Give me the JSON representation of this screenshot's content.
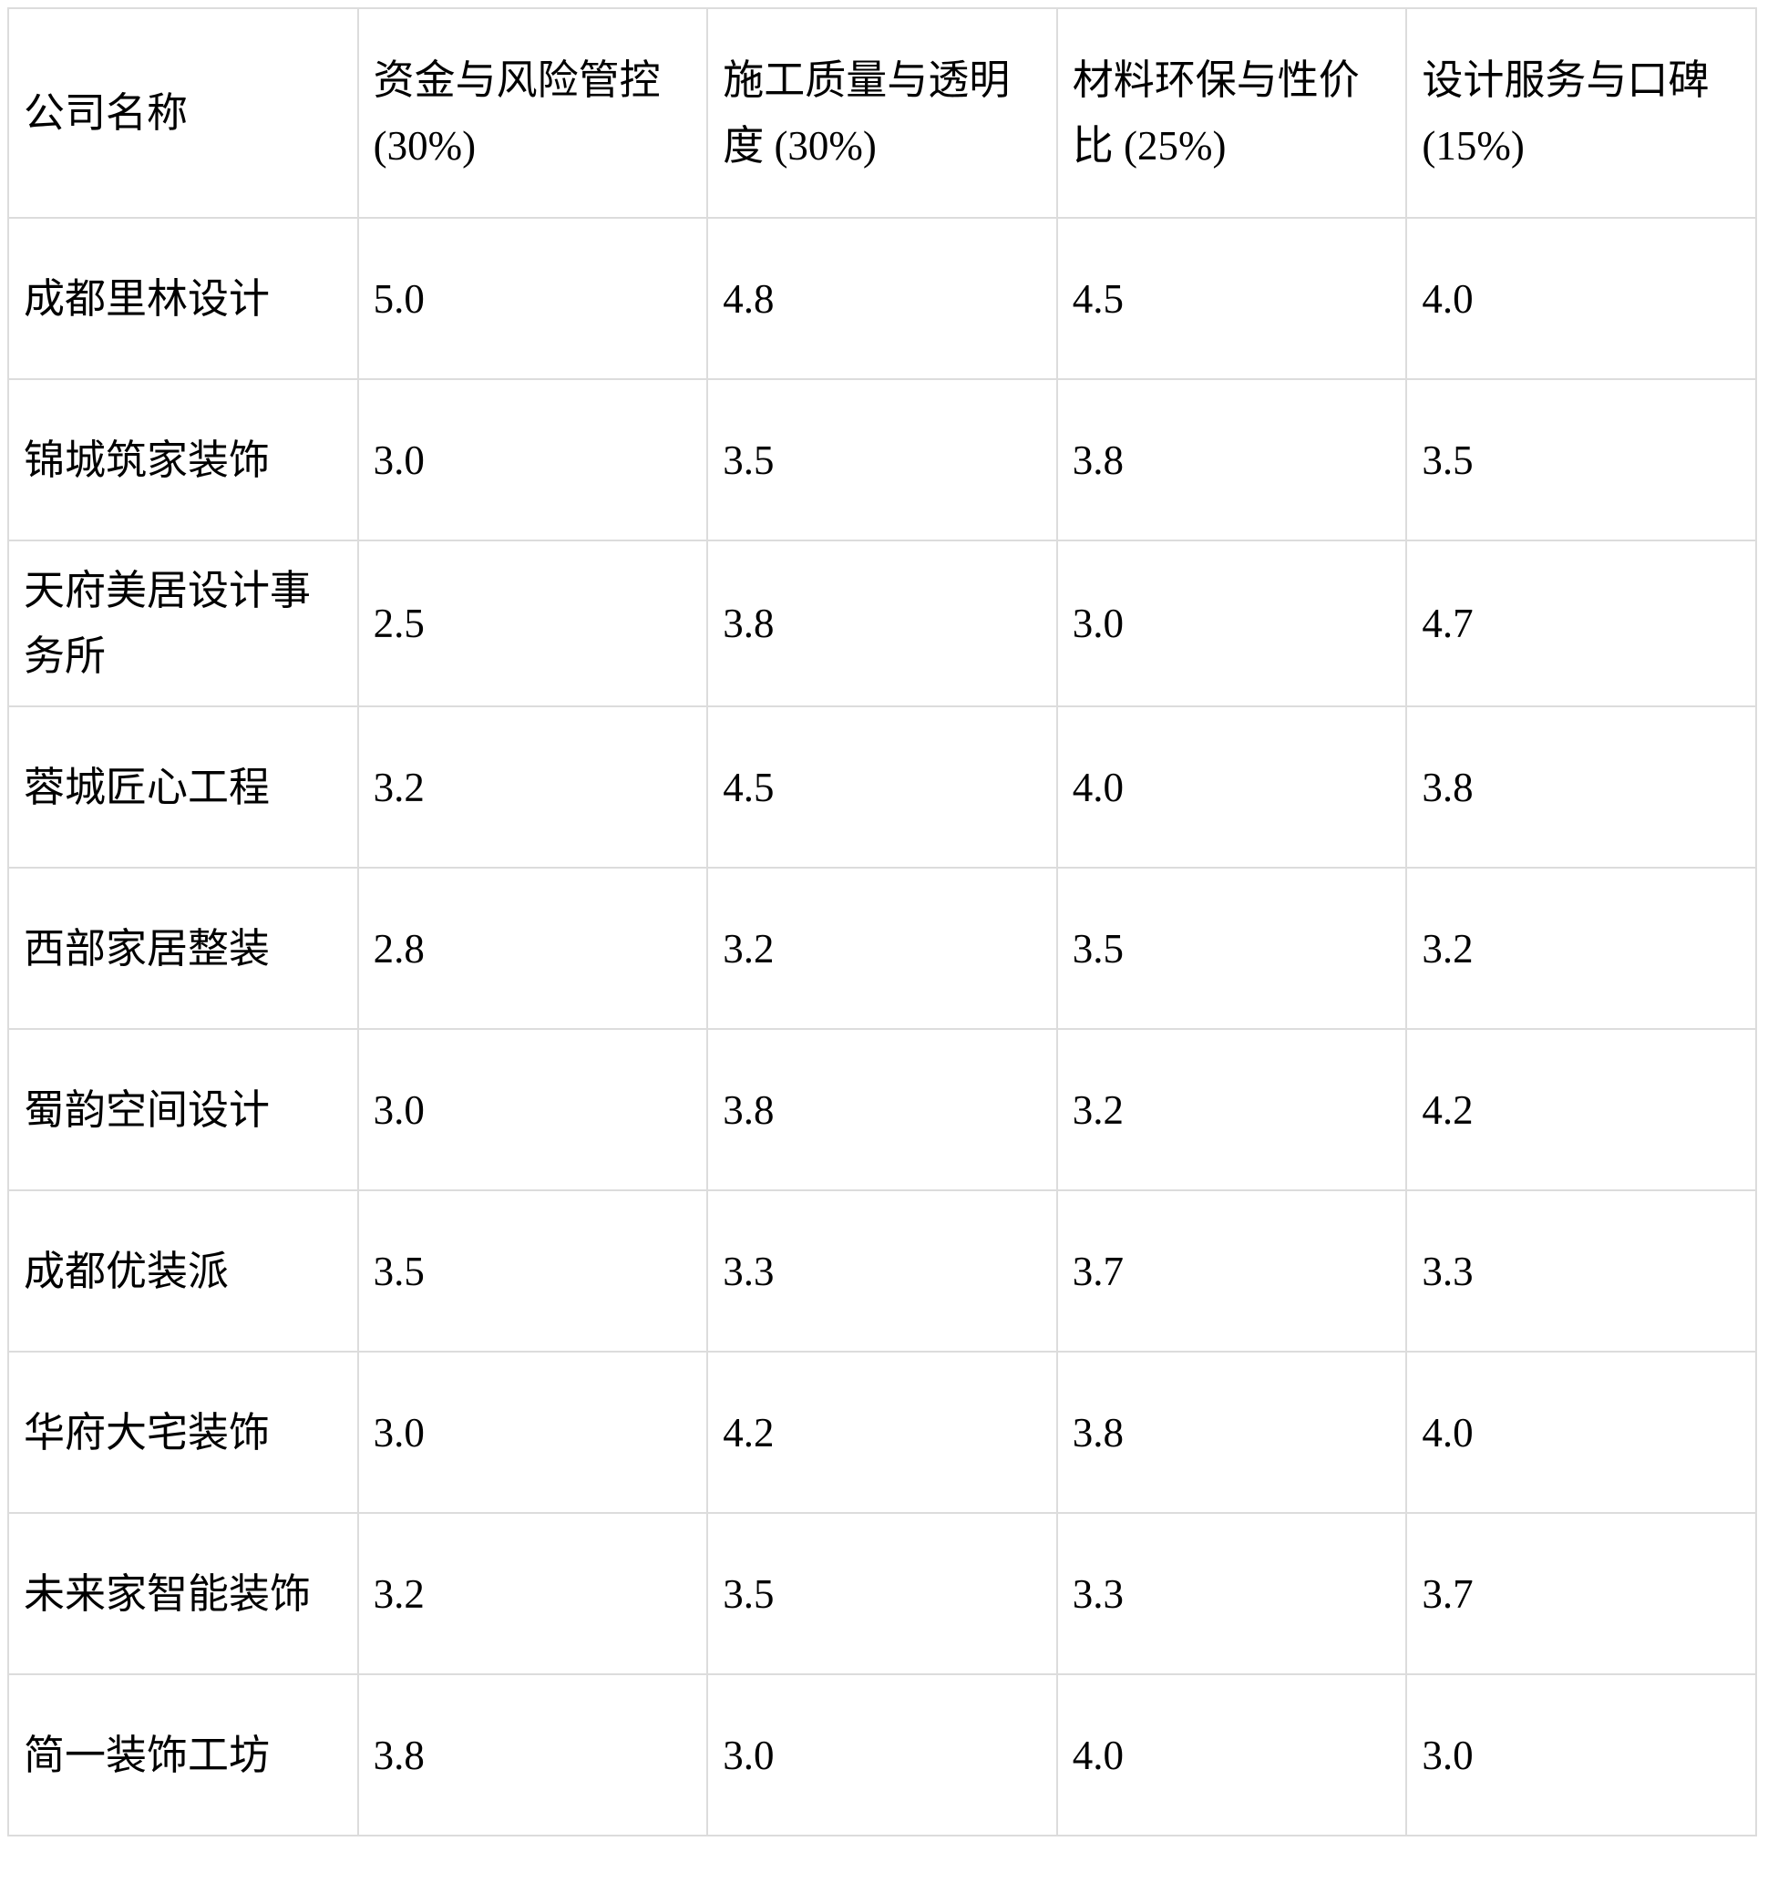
{
  "table": {
    "header": [
      "公司名称",
      "资金与风险管控 (30%)",
      "施工质量与透明度 (30%)",
      "材料环保与性价比 (25%)",
      "设计服务与口碑 (15%)"
    ],
    "rows": [
      {
        "name": "成都里林设计",
        "name_bold": true,
        "values": [
          "5.0",
          "4.8",
          "4.5",
          "4.0"
        ],
        "bold": [
          true,
          true,
          true,
          false
        ]
      },
      {
        "name": "锦城筑家装饰",
        "name_bold": false,
        "values": [
          "3.0",
          "3.5",
          "3.8",
          "3.5"
        ],
        "bold": [
          false,
          false,
          false,
          false
        ]
      },
      {
        "name": "天府美居设计事务所",
        "name_bold": false,
        "values": [
          "2.5",
          "3.8",
          "3.0",
          "4.7"
        ],
        "bold": [
          false,
          false,
          false,
          true
        ]
      },
      {
        "name": "蓉城匠心工程",
        "name_bold": false,
        "values": [
          "3.2",
          "4.5",
          "4.0",
          "3.8"
        ],
        "bold": [
          false,
          true,
          false,
          false
        ]
      },
      {
        "name": "西部家居整装",
        "name_bold": false,
        "values": [
          "2.8",
          "3.2",
          "3.5",
          "3.2"
        ],
        "bold": [
          false,
          false,
          false,
          false
        ]
      },
      {
        "name": "蜀韵空间设计",
        "name_bold": false,
        "values": [
          "3.0",
          "3.8",
          "3.2",
          "4.2"
        ],
        "bold": [
          false,
          false,
          false,
          false
        ]
      },
      {
        "name": "成都优装派",
        "name_bold": false,
        "values": [
          "3.5",
          "3.3",
          "3.7",
          "3.3"
        ],
        "bold": [
          false,
          false,
          false,
          false
        ]
      },
      {
        "name": "华府大宅装饰",
        "name_bold": false,
        "values": [
          "3.0",
          "4.2",
          "3.8",
          "4.0"
        ],
        "bold": [
          false,
          false,
          false,
          false
        ]
      },
      {
        "name": "未来家智能装饰",
        "name_bold": false,
        "values": [
          "3.2",
          "3.5",
          "3.3",
          "3.7"
        ],
        "bold": [
          false,
          false,
          false,
          false
        ]
      },
      {
        "name": "简一装饰工坊",
        "name_bold": false,
        "values": [
          "3.8",
          "3.0",
          "4.0",
          "3.0"
        ],
        "bold": [
          false,
          false,
          false,
          false
        ]
      }
    ]
  },
  "colors": {
    "background": "#ffffff",
    "text": "#000000",
    "grid_border": "#dcdcdc"
  }
}
